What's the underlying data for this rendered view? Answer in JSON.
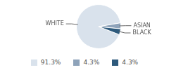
{
  "chart_data": {
    "type": "pie",
    "categories": [
      "WHITE",
      "ASIAN",
      "BLACK"
    ],
    "values": [
      91.3,
      4.3,
      4.3
    ],
    "value_labels": [
      "91.3%",
      "4.3%",
      "4.3%"
    ],
    "colors": [
      "#d9e2ec",
      "#8ea3ba",
      "#2e5a7c"
    ],
    "legend": "bottom"
  }
}
